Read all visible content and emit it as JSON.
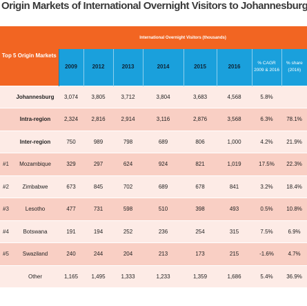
{
  "title": "Origin Markets of International Overnight Visitors to Johannesburg",
  "header": {
    "group_label": "International Overnight Visitors (thousands)",
    "rowhead_label": "Top 5 Origin Markets",
    "columns": [
      "2009",
      "2012",
      "2013",
      "2014",
      "2015",
      "2016",
      "% CAGR 2009 & 2016",
      "% share (2016)"
    ]
  },
  "rows": [
    {
      "rank": "",
      "name": "Johannesburg",
      "values": [
        "3,074",
        "3,805",
        "3,712",
        "3,804",
        "3,683",
        "4,568",
        "5.8%",
        ""
      ],
      "style": "light",
      "bold": true
    },
    {
      "rank": "",
      "name": "Intra-region",
      "values": [
        "2,324",
        "2,816",
        "2,914",
        "3,116",
        "2,876",
        "3,568",
        "6.3%",
        "78.1%"
      ],
      "style": "pink",
      "bold": true
    },
    {
      "rank": "",
      "name": "Inter-region",
      "values": [
        "750",
        "989",
        "798",
        "689",
        "806",
        "1,000",
        "4.2%",
        "21.9%"
      ],
      "style": "light",
      "bold": true
    },
    {
      "rank": "#1",
      "name": "Mozambique",
      "values": [
        "329",
        "297",
        "624",
        "924",
        "821",
        "1,019",
        "17.5%",
        "22.3%"
      ],
      "style": "pink",
      "bold": false
    },
    {
      "rank": "#2",
      "name": "Zimbabwe",
      "values": [
        "673",
        "845",
        "702",
        "689",
        "678",
        "841",
        "3.2%",
        "18.4%"
      ],
      "style": "light",
      "bold": false
    },
    {
      "rank": "#3",
      "name": "Lesotho",
      "values": [
        "477",
        "731",
        "598",
        "510",
        "398",
        "493",
        "0.5%",
        "10.8%"
      ],
      "style": "pink",
      "bold": false
    },
    {
      "rank": "#4",
      "name": "Botswana",
      "values": [
        "191",
        "194",
        "252",
        "236",
        "254",
        "315",
        "7.5%",
        "6.9%"
      ],
      "style": "light",
      "bold": false
    },
    {
      "rank": "#5",
      "name": "Swaziland",
      "values": [
        "240",
        "244",
        "204",
        "213",
        "173",
        "215",
        "-1.6%",
        "4.7%"
      ],
      "style": "pink",
      "bold": false
    },
    {
      "rank": "",
      "name": "Other",
      "values": [
        "1,165",
        "1,495",
        "1,333",
        "1,233",
        "1,359",
        "1,686",
        "5.4%",
        "36.9%"
      ],
      "style": "light",
      "bold": false
    }
  ]
}
